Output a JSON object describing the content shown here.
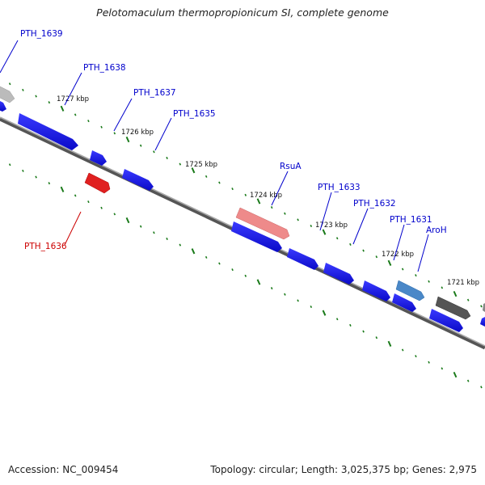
{
  "title": "Pelotomaculum thermopropionicum SI, complete genome",
  "footer": {
    "accession": "Accession: NC_009454",
    "summary": "Topology: circular; Length: 3,025,375 bp; Genes: 2,975"
  },
  "colors": {
    "forward_gene": "#1a1aee",
    "highlight_gene": "#e02020",
    "rsua_gene": "#ee8a8a",
    "aroh_gene": "#4a88c8",
    "dark_gene": "#555555",
    "light_gene": "#bbbbbb",
    "backbone": "#777777",
    "tick": "#1a7a1a",
    "label_blue": "#0000cc",
    "label_red": "#cc0000"
  },
  "kbp_labels": [
    "1727 kbp",
    "1726 kbp",
    "1725 kbp",
    "1724 kbp",
    "1723 kbp",
    "1722 kbp",
    "1721 kbp"
  ],
  "gene_labels": {
    "pth1639": "PTH_1639",
    "pth1638": "PTH_1638",
    "pth1637": "PTH_1637",
    "pth1635": "PTH_1635",
    "rsua": "RsuA",
    "pth1633": "PTH_1633",
    "pth1632": "PTH_1632",
    "pth1631": "PTH_1631",
    "aroh": "AroH",
    "pth1636": "PTH_1636"
  }
}
